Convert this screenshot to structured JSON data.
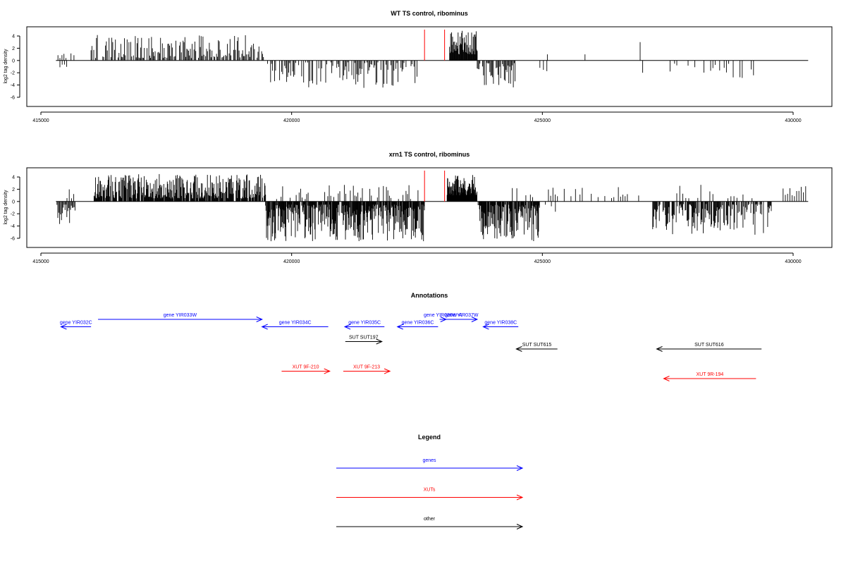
{
  "chart_data": [
    {
      "type": "bar",
      "title": "WT TS control, ribominus",
      "ylabel": "log2 tag density",
      "xlabel": "",
      "xlim": [
        415000,
        430300
      ],
      "ylim": [
        -7.5,
        5.5
      ],
      "xticks": [
        415000,
        420000,
        425000,
        430000
      ],
      "yticks": [
        -6,
        -4,
        -2,
        0,
        2,
        4
      ],
      "baseline_range": [
        415300,
        430300
      ],
      "markers": [
        422650,
        423050
      ],
      "marker_color": "#ff0000",
      "series": [
        {
          "range": [
            415340,
            415500
          ],
          "step": 40,
          "min": 0.4,
          "max": 1.4,
          "sign": 1,
          "seed": 11
        },
        {
          "range": [
            415380,
            415540
          ],
          "step": 45,
          "min": 0.6,
          "max": 2.0,
          "sign": -1,
          "seed": 12
        },
        {
          "range": [
            415600,
            415700
          ],
          "step": 60,
          "min": 0.5,
          "max": 2.0,
          "sign": 1,
          "seed": 13
        },
        {
          "range": [
            416000,
            419450
          ],
          "step": 18,
          "min": 0.4,
          "max": 4.2,
          "sign": 1,
          "seed": 14,
          "density": 0.75
        },
        {
          "range": [
            419500,
            422500
          ],
          "step": 20,
          "min": 0.3,
          "max": 4.5,
          "sign": -1,
          "seed": 15,
          "density": 0.6
        },
        {
          "range": [
            423150,
            423700
          ],
          "step": 10,
          "min": 1.0,
          "max": 5.0,
          "sign": 1,
          "seed": 16
        },
        {
          "range": [
            423700,
            424500
          ],
          "step": 18,
          "min": 0.4,
          "max": 4.5,
          "sign": -1,
          "seed": 17,
          "density": 0.7
        },
        {
          "range": [
            424950,
            425110
          ],
          "step": 70,
          "min": 0.8,
          "max": 2.2,
          "sign": -1,
          "seed": 18
        },
        {
          "range": [
            425100,
            425101
          ],
          "step": 10,
          "min": 1.0,
          "max": 1.0,
          "sign": 1,
          "seed": 19
        },
        {
          "range": [
            425850,
            425851
          ],
          "step": 10,
          "min": 1.0,
          "max": 1.0,
          "sign": 1,
          "seed": 20
        },
        {
          "range": [
            426950,
            426951
          ],
          "step": 10,
          "min": 3.0,
          "max": 3.0,
          "sign": 1,
          "seed": 21
        },
        {
          "range": [
            427000,
            427001
          ],
          "step": 10,
          "min": 2.0,
          "max": 2.0,
          "sign": -1,
          "seed": 22
        },
        {
          "range": [
            427500,
            429250
          ],
          "step": 45,
          "min": 0.5,
          "max": 3.2,
          "sign": -1,
          "seed": 23,
          "density": 0.35
        }
      ]
    },
    {
      "type": "bar",
      "title": "xrn1 TS control, ribominus",
      "ylabel": "log2 tag density",
      "xlabel": "",
      "xlim": [
        415000,
        430300
      ],
      "ylim": [
        -7.5,
        5.5
      ],
      "xticks": [
        415000,
        420000,
        425000,
        430000
      ],
      "yticks": [
        -6,
        -4,
        -2,
        0,
        2,
        4
      ],
      "baseline_range": [
        415300,
        430300
      ],
      "markers": [
        422650,
        423050
      ],
      "marker_color": "#ff0000",
      "series": [
        {
          "range": [
            415320,
            415680
          ],
          "step": 18,
          "min": 0.5,
          "max": 4.0,
          "sign": -1,
          "seed": 31
        },
        {
          "range": [
            415520,
            415660
          ],
          "step": 45,
          "min": 0.5,
          "max": 2.0,
          "sign": 1,
          "seed": 32
        },
        {
          "range": [
            416050,
            419480
          ],
          "step": 10,
          "min": 0.5,
          "max": 4.5,
          "sign": 1,
          "seed": 33,
          "density": 0.85
        },
        {
          "range": [
            419480,
            422650
          ],
          "step": 9,
          "min": 0.5,
          "max": 6.5,
          "sign": -1,
          "seed": 34,
          "density": 0.85
        },
        {
          "range": [
            419700,
            422600
          ],
          "step": 30,
          "min": 0.4,
          "max": 3.0,
          "sign": 1,
          "seed": 35,
          "density": 0.4
        },
        {
          "range": [
            423100,
            423700
          ],
          "step": 7,
          "min": 1.0,
          "max": 4.8,
          "sign": 1,
          "seed": 36
        },
        {
          "range": [
            423700,
            424950
          ],
          "step": 9,
          "min": 0.5,
          "max": 6.5,
          "sign": -1,
          "seed": 37,
          "density": 0.85
        },
        {
          "range": [
            424400,
            427000
          ],
          "step": 45,
          "min": 0.5,
          "max": 2.5,
          "sign": 1,
          "seed": 38,
          "density": 0.45
        },
        {
          "range": [
            424900,
            425300
          ],
          "step": 40,
          "min": 0.5,
          "max": 2.0,
          "sign": -1,
          "seed": 39,
          "density": 0.5
        },
        {
          "range": [
            427200,
            429600
          ],
          "step": 12,
          "min": 0.4,
          "max": 5.5,
          "sign": -1,
          "seed": 40,
          "density": 0.7
        },
        {
          "range": [
            427500,
            429200
          ],
          "step": 60,
          "min": 0.5,
          "max": 3.0,
          "sign": 1,
          "seed": 41,
          "density": 0.4
        },
        {
          "range": [
            429800,
            430250
          ],
          "step": 45,
          "min": 0.8,
          "max": 2.5,
          "sign": 1,
          "seed": 42
        }
      ]
    }
  ],
  "annotations": {
    "title": "Annotations",
    "items": [
      {
        "label": "gene YIR032C",
        "color": "#0000ff",
        "dir": "left",
        "start": 415400,
        "end": 416000,
        "row": 1
      },
      {
        "label": "gene YIR033W",
        "color": "#0000ff",
        "dir": "right",
        "start": 416140,
        "end": 419410,
        "row": 0
      },
      {
        "label": "gene YIR034C",
        "color": "#0000ff",
        "dir": "left",
        "start": 419410,
        "end": 420730,
        "row": 1
      },
      {
        "label": "gene YIR035C",
        "color": "#0000ff",
        "dir": "left",
        "start": 421060,
        "end": 421850,
        "row": 1
      },
      {
        "label": "gene YIR036C",
        "color": "#0000ff",
        "dir": "left",
        "start": 422110,
        "end": 422920,
        "row": 1
      },
      {
        "label": "gene YIR036W-A",
        "color": "#0000ff",
        "dir": "right",
        "start": 422950,
        "end": 423080,
        "row": 0
      },
      {
        "label": "gene YIR037W",
        "color": "#0000ff",
        "dir": "right",
        "start": 423080,
        "end": 423700,
        "row": 0
      },
      {
        "label": "gene YIR038C",
        "color": "#0000ff",
        "dir": "left",
        "start": 423820,
        "end": 424520,
        "row": 1
      },
      {
        "label": "SUT SUT197",
        "color": "#000000",
        "dir": "right",
        "start": 421070,
        "end": 421800,
        "row": 3
      },
      {
        "label": "SUT SUT615",
        "color": "#000000",
        "dir": "left",
        "start": 424480,
        "end": 425300,
        "row": 4
      },
      {
        "label": "SUT SUT616",
        "color": "#000000",
        "dir": "left",
        "start": 427280,
        "end": 429370,
        "row": 4
      },
      {
        "label": "XUT 9F-210",
        "color": "#ff0000",
        "dir": "right",
        "start": 419800,
        "end": 420760,
        "row": 7
      },
      {
        "label": "XUT 9F-213",
        "color": "#ff0000",
        "dir": "right",
        "start": 421030,
        "end": 421960,
        "row": 7
      },
      {
        "label": "XUT 9R-194",
        "color": "#ff0000",
        "dir": "left",
        "start": 427420,
        "end": 429260,
        "row": 8
      }
    ]
  },
  "legend": {
    "title": "Legend",
    "items": [
      {
        "label": "genes",
        "color": "#0000ff"
      },
      {
        "label": "XUTs",
        "color": "#ff0000"
      },
      {
        "label": "other",
        "color": "#000000"
      }
    ]
  }
}
